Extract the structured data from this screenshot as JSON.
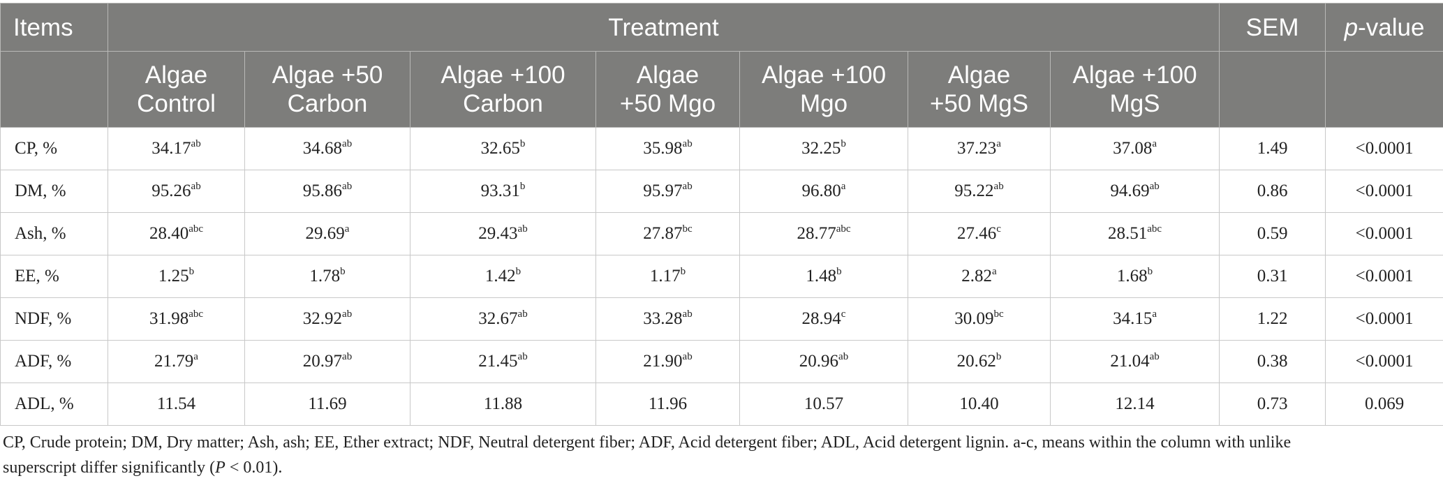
{
  "table": {
    "header": {
      "items": "Items",
      "treatment": "Treatment",
      "sem": "SEM",
      "pvalue_italic": "p",
      "pvalue_rest": "-value",
      "columns": [
        [
          "Algae",
          "Control"
        ],
        [
          "Algae +50",
          "Carbon"
        ],
        [
          "Algae +100",
          "Carbon"
        ],
        [
          "Algae",
          "+50 Mgo"
        ],
        [
          "Algae +100",
          "Mgo"
        ],
        [
          "Algae",
          "+50 MgS"
        ],
        [
          "Algae +100",
          "MgS"
        ]
      ]
    },
    "rows": [
      {
        "label": "CP, %",
        "cells": [
          [
            "34.17",
            "ab"
          ],
          [
            "34.68",
            "ab"
          ],
          [
            "32.65",
            "b"
          ],
          [
            "35.98",
            "ab"
          ],
          [
            "32.25",
            "b"
          ],
          [
            "37.23",
            "a"
          ],
          [
            "37.08",
            "a"
          ]
        ],
        "sem": "1.49",
        "p": "<0.0001"
      },
      {
        "label": "DM, %",
        "cells": [
          [
            "95.26",
            "ab"
          ],
          [
            "95.86",
            "ab"
          ],
          [
            "93.31",
            "b"
          ],
          [
            "95.97",
            "ab"
          ],
          [
            "96.80",
            "a"
          ],
          [
            "95.22",
            "ab"
          ],
          [
            "94.69",
            "ab"
          ]
        ],
        "sem": "0.86",
        "p": "<0.0001"
      },
      {
        "label": "Ash, %",
        "cells": [
          [
            "28.40",
            "abc"
          ],
          [
            "29.69",
            "a"
          ],
          [
            "29.43",
            "ab"
          ],
          [
            "27.87",
            "bc"
          ],
          [
            "28.77",
            "abc"
          ],
          [
            "27.46",
            "c"
          ],
          [
            "28.51",
            "abc"
          ]
        ],
        "sem": "0.59",
        "p": "<0.0001"
      },
      {
        "label": "EE, %",
        "cells": [
          [
            "1.25",
            "b"
          ],
          [
            "1.78",
            "b"
          ],
          [
            "1.42",
            "b"
          ],
          [
            "1.17",
            "b"
          ],
          [
            "1.48",
            "b"
          ],
          [
            "2.82",
            "a"
          ],
          [
            "1.68",
            "b"
          ]
        ],
        "sem": "0.31",
        "p": "<0.0001"
      },
      {
        "label": "NDF, %",
        "cells": [
          [
            "31.98",
            "abc"
          ],
          [
            "32.92",
            "ab"
          ],
          [
            "32.67",
            "ab"
          ],
          [
            "33.28",
            "ab"
          ],
          [
            "28.94",
            "c"
          ],
          [
            "30.09",
            "bc"
          ],
          [
            "34.15",
            "a"
          ]
        ],
        "sem": "1.22",
        "p": "<0.0001"
      },
      {
        "label": "ADF, %",
        "cells": [
          [
            "21.79",
            "a"
          ],
          [
            "20.97",
            "ab"
          ],
          [
            "21.45",
            "ab"
          ],
          [
            "21.90",
            "ab"
          ],
          [
            "20.96",
            "ab"
          ],
          [
            "20.62",
            "b"
          ],
          [
            "21.04",
            "ab"
          ]
        ],
        "sem": "0.38",
        "p": "<0.0001"
      },
      {
        "label": "ADL, %",
        "cells": [
          [
            "11.54",
            ""
          ],
          [
            "11.69",
            ""
          ],
          [
            "11.88",
            ""
          ],
          [
            "11.96",
            ""
          ],
          [
            "10.57",
            ""
          ],
          [
            "10.40",
            ""
          ],
          [
            "12.14",
            ""
          ]
        ],
        "sem": "0.73",
        "p": "0.069"
      }
    ]
  },
  "footnote": {
    "line1": "CP, Crude protein; DM, Dry matter; Ash, ash; EE, Ether extract; NDF, Neutral detergent fiber; ADF, Acid detergent fiber; ADL, Acid detergent lignin. a-c, means within the column with unlike",
    "line2_pre": "superscript differ significantly (",
    "line2_p": "P",
    "line2_post": " < 0.01)."
  },
  "colors": {
    "header_bg": "#7d7d7b",
    "header_text": "#ffffff",
    "grid": "#c8c8c8",
    "body_text": "#222222"
  }
}
